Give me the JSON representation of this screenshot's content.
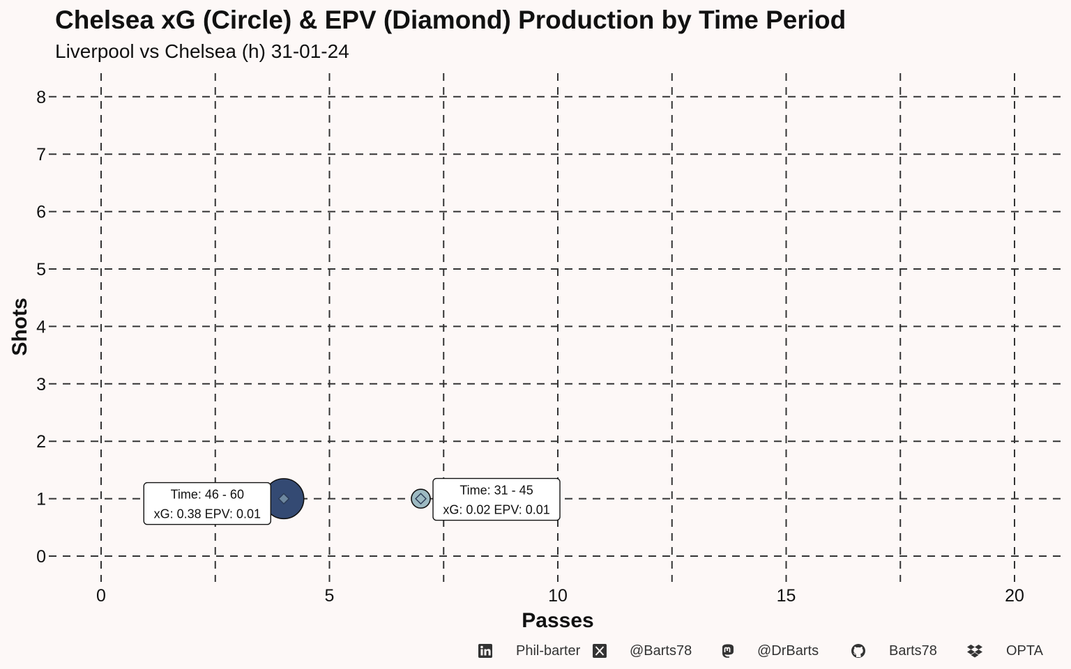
{
  "title": "Chelsea xG (Circle) & EPV (Diamond) Production by Time Period",
  "subtitle": "Liverpool vs Chelsea (h) 31-01-24",
  "chart_data": {
    "type": "scatter",
    "xlabel": "Passes",
    "ylabel": "Shots",
    "xlim": [
      -1,
      21
    ],
    "ylim": [
      -0.5,
      8.4
    ],
    "xticks": [
      0,
      5,
      10,
      15,
      20
    ],
    "yticks": [
      0,
      1,
      2,
      3,
      4,
      5,
      6,
      7,
      8
    ],
    "grid": true,
    "points": [
      {
        "time": "46 - 60",
        "passes": 4,
        "shots": 1,
        "xg": 0.38,
        "epv": 0.01,
        "color": "#344a73",
        "label_line1": "Time: 46 - 60",
        "label_line2": "xG: 0.38 EPV: 0.01",
        "label_side": "left"
      },
      {
        "time": "31 - 45",
        "passes": 7,
        "shots": 1,
        "xg": 0.02,
        "epv": 0.01,
        "color": "#9dbac2",
        "label_line1": "Time: 31 - 45",
        "label_line2": "xG: 0.02 EPV: 0.01",
        "label_side": "right"
      }
    ]
  },
  "footer": {
    "linkedin": {
      "icon": "linkedin-icon",
      "label": "Phil-barter"
    },
    "x": {
      "icon": "x-twitter-icon",
      "label": "@Barts78"
    },
    "mastodon": {
      "icon": "mastodon-icon",
      "label": "@DrBarts"
    },
    "github": {
      "icon": "github-icon",
      "label": "Barts78"
    },
    "source": {
      "icon": "dropbox-icon",
      "label": "OPTA"
    }
  }
}
